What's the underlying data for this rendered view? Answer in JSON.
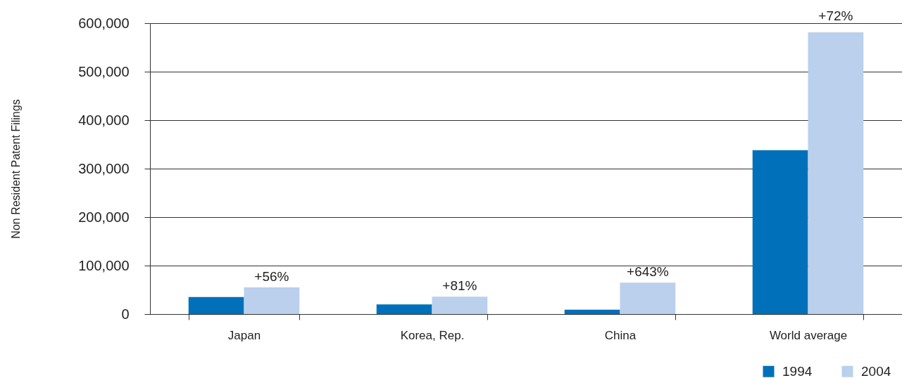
{
  "chart_data": {
    "type": "bar",
    "ylabel": "Non Resident Patent Filings",
    "categories": [
      "Japan",
      "Korea, Rep.",
      "China",
      "World average"
    ],
    "series": [
      {
        "name": "1994",
        "color": "#0070bb",
        "values": [
          35000,
          20000,
          9000,
          338000
        ]
      },
      {
        "name": "2004",
        "color": "#bad0ec",
        "values": [
          55000,
          36000,
          65000,
          581000
        ]
      }
    ],
    "annotations": [
      {
        "text": "+56%",
        "x": "Japan",
        "y": 55000
      },
      {
        "text": "+81%",
        "x": "Korea, Rep.",
        "y": 36000
      },
      {
        "text": "+643%",
        "x": "China",
        "y": 65000
      },
      {
        "text": "+72%",
        "x": "World average",
        "y": 581000
      }
    ],
    "ylim": [
      0,
      600000
    ],
    "yticks": [
      0,
      {
        "value": 100000,
        "label": "100,000"
      },
      {
        "value": 200000,
        "label": "200,000"
      },
      {
        "value": 300000,
        "label": "300,000"
      },
      {
        "value": 400000,
        "label": "400,000"
      },
      {
        "value": 500000,
        "label": "500,000"
      },
      {
        "value": 600000,
        "label": "600,000"
      }
    ],
    "grid": "y",
    "legend": "bottom right"
  }
}
